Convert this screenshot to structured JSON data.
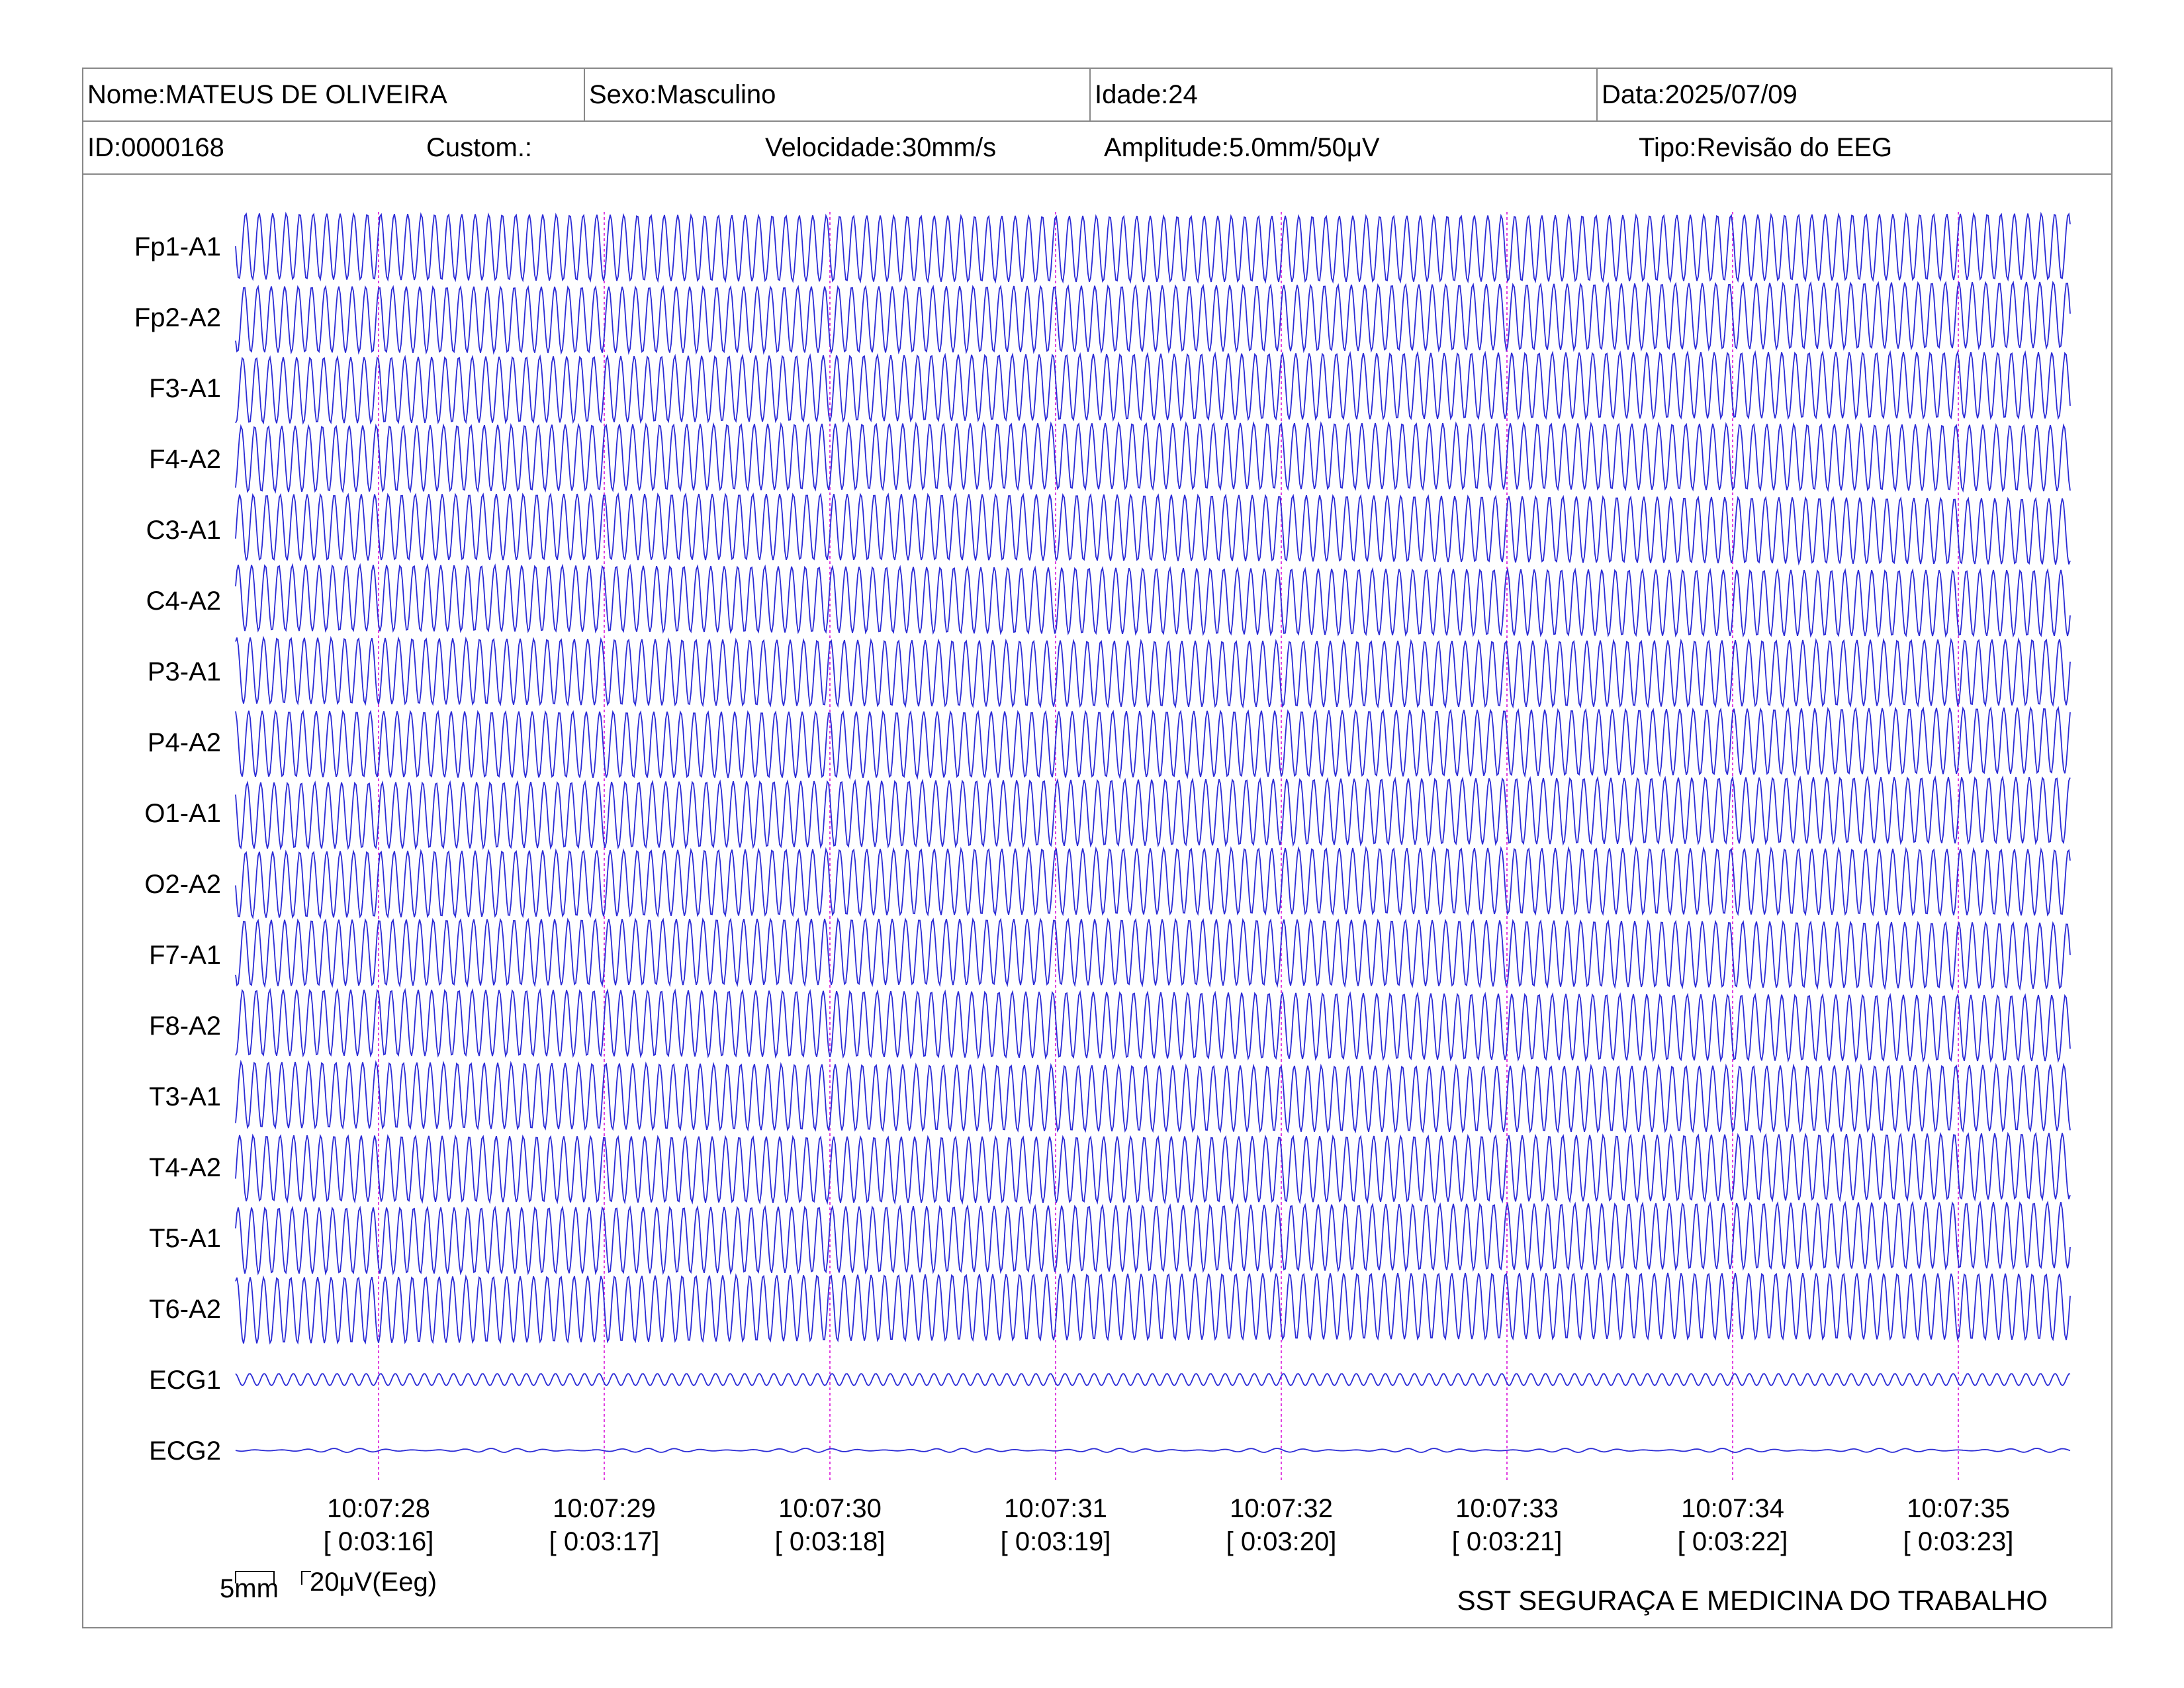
{
  "header": {
    "nome": "Nome:MATEUS DE OLIVEIRA",
    "sexo": "Sexo:Masculino",
    "idade": "Idade:24",
    "data": "Data:2025/07/09",
    "id": "ID:0000168",
    "custom": "Custom.:",
    "velocidade": "Velocidade:30mm/s",
    "amplitude": "Amplitude:5.0mm/50μV",
    "tipo": "Tipo:Revisão do EEG"
  },
  "chart_data": {
    "type": "line",
    "channels": [
      "Fp1-A1",
      "Fp2-A2",
      "F3-A1",
      "F4-A2",
      "C3-A1",
      "C4-A2",
      "P3-A1",
      "P4-A2",
      "O1-A1",
      "O2-A2",
      "F7-A1",
      "F8-A2",
      "T3-A1",
      "T4-A2",
      "T5-A1",
      "T6-A2",
      "ECG1",
      "ECG2"
    ],
    "time_markers": [
      {
        "clock": "10:07:28",
        "elapsed": "[ 0:03:16]"
      },
      {
        "clock": "10:07:29",
        "elapsed": "[ 0:03:17]"
      },
      {
        "clock": "10:07:30",
        "elapsed": "[ 0:03:18]"
      },
      {
        "clock": "10:07:31",
        "elapsed": "[ 0:03:19]"
      },
      {
        "clock": "10:07:32",
        "elapsed": "[ 0:03:20]"
      },
      {
        "clock": "10:07:33",
        "elapsed": "[ 0:03:21]"
      },
      {
        "clock": "10:07:34",
        "elapsed": "[ 0:03:22]"
      },
      {
        "clock": "10:07:35",
        "elapsed": "[ 0:03:23]"
      }
    ],
    "trace_color": "#2b2bd6",
    "marker_color": "#e040e0"
  },
  "scale": {
    "time": "5mm",
    "amplitude": "20μV(Eeg)"
  },
  "footer": "SST SEGURAÇA E MEDICINA DO TRABALHO"
}
